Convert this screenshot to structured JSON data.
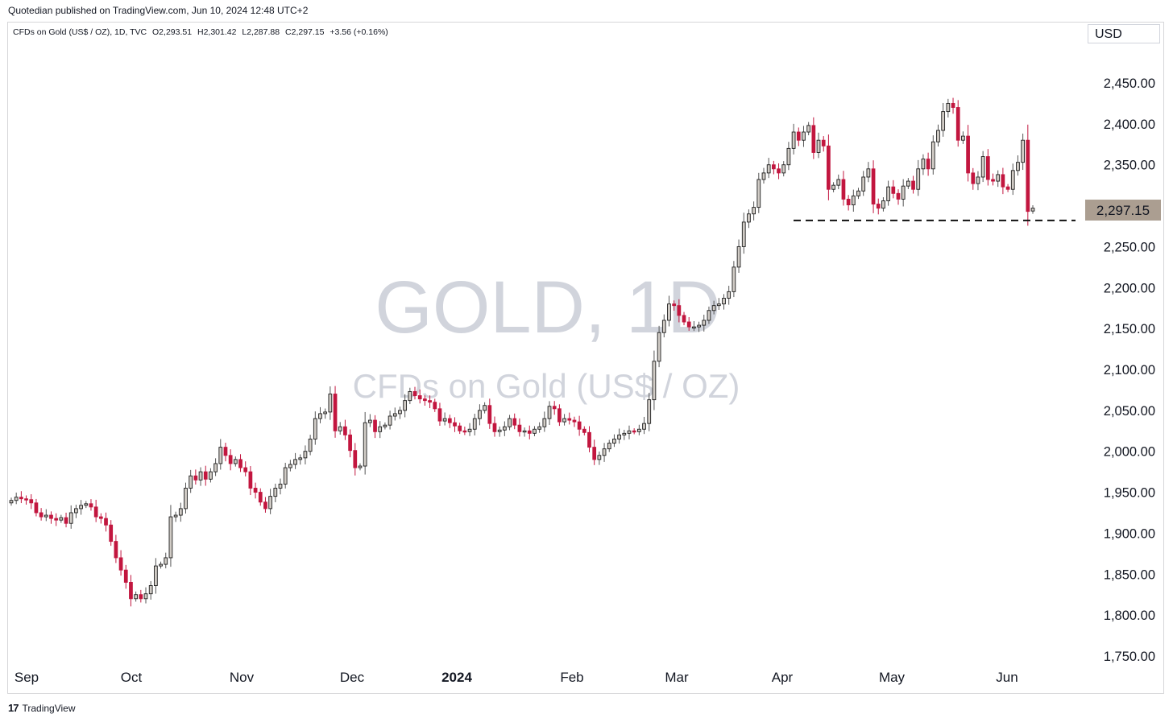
{
  "header": {
    "published": "Quotedian published on TradingView.com, Jun 10, 2024 12:48 UTC+2"
  },
  "symbol_info": {
    "name": "CFDs on Gold (US$ / OZ), 1D, TVC",
    "open": "O2,293.51",
    "high": "H2,301.42",
    "low": "L2,287.88",
    "close": "C2,297.15",
    "change": "+3.56 (+0.16%)"
  },
  "currency": "USD",
  "watermark": {
    "title": "GOLD, 1D",
    "subtitle": "CFDs on Gold (US$ / OZ)"
  },
  "footer": {
    "brand": "TradingView",
    "logo_text": "17"
  },
  "colors": {
    "up_fill": "#d1ccc6",
    "down_fill": "#c2163f",
    "outline": "#1e1e1e",
    "price_tag": "#ab9e91",
    "watermark": "#d1d4dc"
  },
  "chart_data": {
    "type": "candlestick",
    "ylim": [
      1750,
      2500
    ],
    "y_ticks": [
      "1,750.00",
      "1,800.00",
      "1,850.00",
      "1,900.00",
      "1,950.00",
      "2,000.00",
      "2,050.00",
      "2,100.00",
      "2,150.00",
      "2,200.00",
      "2,250.00",
      "2,300.00",
      "2,350.00",
      "2,400.00",
      "2,450.00"
    ],
    "x_labels": [
      "Sep",
      "Oct",
      "Nov",
      "Dec",
      "2024",
      "Feb",
      "Mar",
      "Apr",
      "May",
      "Jun"
    ],
    "last_price": "2,297.15",
    "support_level": 2282,
    "closes": [
      1940,
      1944,
      1942,
      1941,
      1937,
      1925,
      1920,
      1922,
      1918,
      1916,
      1919,
      1912,
      1925,
      1930,
      1934,
      1936,
      1932,
      1920,
      1918,
      1910,
      1890,
      1870,
      1855,
      1840,
      1820,
      1825,
      1820,
      1826,
      1836,
      1860,
      1862,
      1870,
      1920,
      1922,
      1930,
      1955,
      1970,
      1965,
      1975,
      1966,
      1975,
      1985,
      2005,
      1995,
      1985,
      1990,
      1980,
      1975,
      1955,
      1950,
      1938,
      1930,
      1945,
      1955,
      1960,
      1980,
      1984,
      1990,
      1992,
      2000,
      2015,
      2040,
      2046,
      2048,
      2070,
      2025,
      2030,
      2020,
      2001,
      1980,
      1982,
      2035,
      2038,
      2024,
      2030,
      2032,
      2043,
      2046,
      2050,
      2062,
      2073,
      2068,
      2064,
      2062,
      2060,
      2052,
      2037,
      2040,
      2035,
      2031,
      2025,
      2024,
      2027,
      2040,
      2050,
      2056,
      2034,
      2024,
      2026,
      2030,
      2040,
      2032,
      2024,
      2025,
      2022,
      2027,
      2030,
      2040,
      2055,
      2052,
      2036,
      2040,
      2038,
      2036,
      2027,
      2023,
      2005,
      1990,
      1995,
      2003,
      2010,
      2015,
      2020,
      2022,
      2025,
      2024,
      2027,
      2034,
      2063,
      2110,
      2145,
      2160,
      2180,
      2178,
      2166,
      2158,
      2152,
      2152,
      2154,
      2160,
      2172,
      2178,
      2180,
      2187,
      2195,
      2225,
      2250,
      2280,
      2290,
      2298,
      2332,
      2340,
      2350,
      2345,
      2340,
      2350,
      2370,
      2390,
      2380,
      2390,
      2398,
      2365,
      2380,
      2373,
      2320,
      2325,
      2332,
      2308,
      2301,
      2312,
      2318,
      2335,
      2345,
      2302,
      2297,
      2306,
      2323,
      2315,
      2308,
      2324,
      2330,
      2320,
      2345,
      2357,
      2345,
      2378,
      2392,
      2415,
      2425,
      2420,
      2380,
      2385,
      2340,
      2327,
      2335,
      2360,
      2332,
      2330,
      2338,
      2323,
      2320,
      2343,
      2353,
      2380,
      2293,
      2297
    ]
  }
}
